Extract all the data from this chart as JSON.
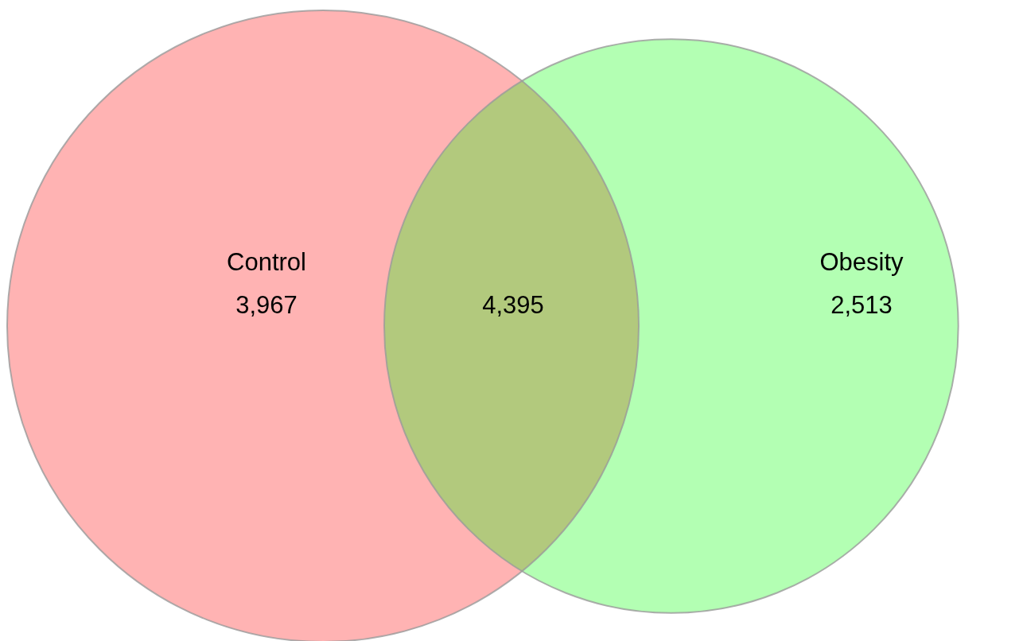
{
  "chart_data": {
    "type": "other",
    "categories": [
      "Control",
      null,
      "Obesity"
    ],
    "values": [
      3967,
      4395,
      2513
    ],
    "value_labels": [
      "3,967",
      "4,395",
      "2,513"
    ],
    "colors": [
      "#ffb3b3",
      "#b2c97d",
      "#b3ffb3"
    ]
  }
}
